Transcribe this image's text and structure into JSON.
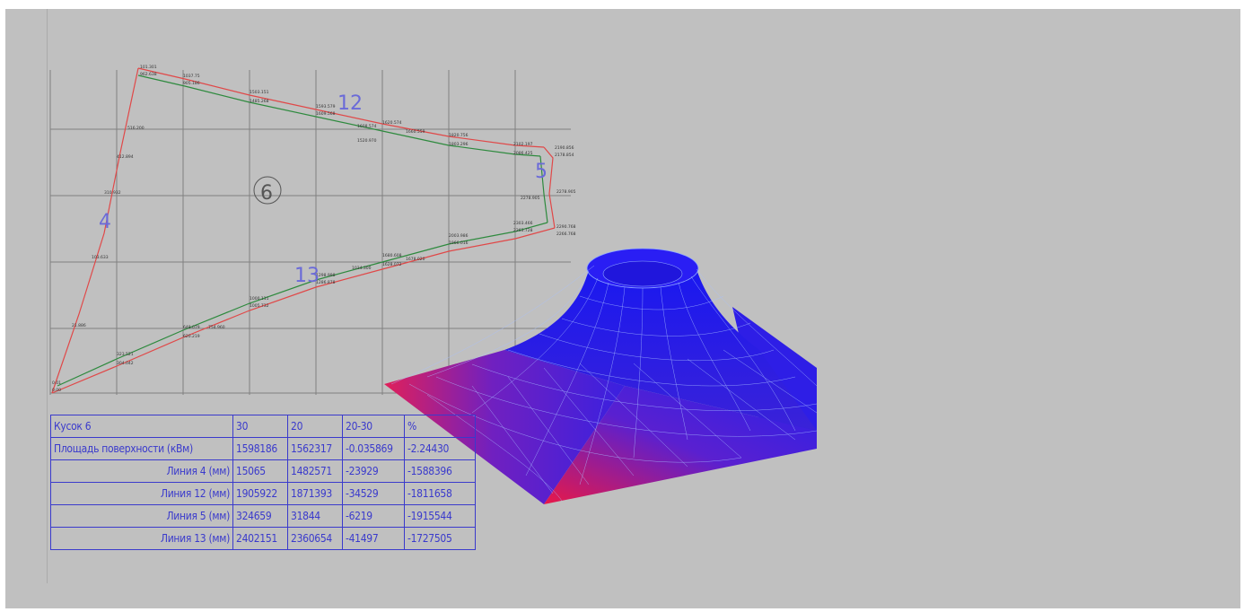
{
  "diagram": {
    "piece_number": "6",
    "line_labels": {
      "left": "4",
      "top": "12",
      "right": "5",
      "bottom": "13"
    },
    "mesh_colors": {
      "edge_low": "#e0205a",
      "center": "#2a20e8",
      "mesh_line": "#9fb8ff"
    },
    "line_colors": {
      "red": "#e04848",
      "green": "#2e8a3e",
      "grid": "#808080"
    }
  },
  "table": {
    "header": [
      "Кусок 6",
      "30",
      "20",
      "20-30",
      "%"
    ],
    "rows": [
      [
        "Площадь поверхности (кВм)",
        "1598186",
        "1562317",
        "-0.035869",
        "-2.24430"
      ],
      [
        "Линия 4 (мм)",
        "15065",
        "1482571",
        "-23929",
        "-1588396"
      ],
      [
        "Линия 12 (мм)",
        "1905922",
        "1871393",
        "-34529",
        "-1811658"
      ],
      [
        "Линия 5 (мм)",
        "324659",
        "31844",
        "-6219",
        "-1915544"
      ],
      [
        "Линия 13 (мм)",
        "2402151",
        "2360654",
        "-41497",
        "-1727505"
      ]
    ]
  }
}
